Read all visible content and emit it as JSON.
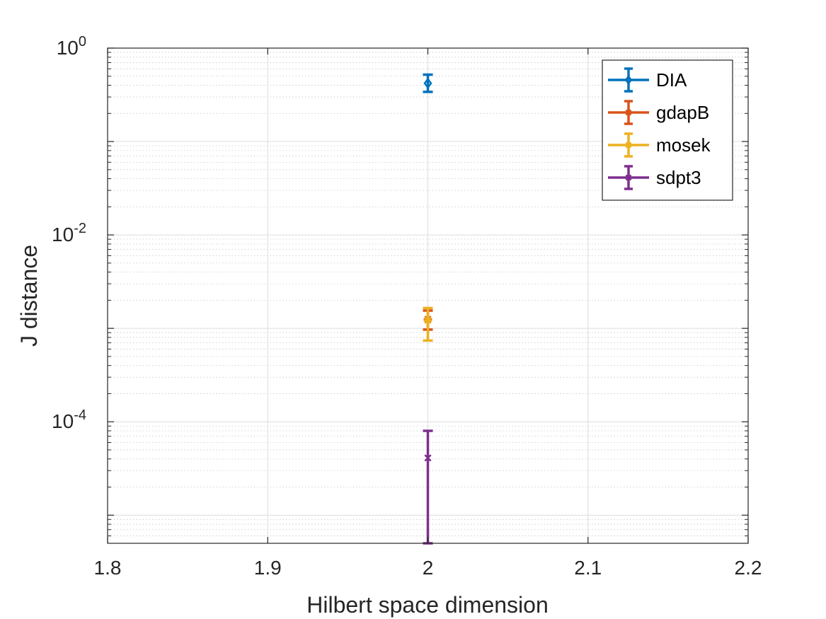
{
  "chart_data": {
    "type": "scatter",
    "title": "",
    "xlabel": "Hilbert space dimension",
    "ylabel": "J distance",
    "xlim": [
      1.8,
      2.2
    ],
    "ylim": [
      5e-06,
      1
    ],
    "yscale": "log",
    "x_ticks": [
      "1.8",
      "1.9",
      "2",
      "2.1",
      "2.2"
    ],
    "y_ticks": [
      {
        "value": 1,
        "base": "10",
        "exp": "0"
      },
      {
        "value": 0.01,
        "base": "10",
        "exp": "-2"
      },
      {
        "value": 0.0001,
        "base": "10",
        "exp": "-4"
      }
    ],
    "grid": true,
    "minor_grid": true,
    "legend_position": "top-right",
    "series": [
      {
        "name": "DIA",
        "color": "#0072BD",
        "marker": "diamond",
        "x": [
          2
        ],
        "y": [
          0.42
        ],
        "err_low": [
          0.08
        ],
        "err_high": [
          0.1
        ]
      },
      {
        "name": "gdapB",
        "color": "#D95319",
        "marker": "asterisk",
        "x": [
          2
        ],
        "y": [
          0.00125
        ],
        "err_low": [
          0.00028
        ],
        "err_high": [
          0.0003
        ]
      },
      {
        "name": "mosek",
        "color": "#EDB120",
        "marker": "asterisk",
        "x": [
          2
        ],
        "y": [
          0.00122
        ],
        "err_low": [
          0.00048
        ],
        "err_high": [
          0.00043
        ]
      },
      {
        "name": "sdpt3",
        "color": "#7E2F8E",
        "marker": "x",
        "x": [
          2
        ],
        "y": [
          4.1e-05
        ],
        "err_low": [
          3.6e-05
        ],
        "err_high": [
          3.9e-05
        ]
      }
    ]
  }
}
